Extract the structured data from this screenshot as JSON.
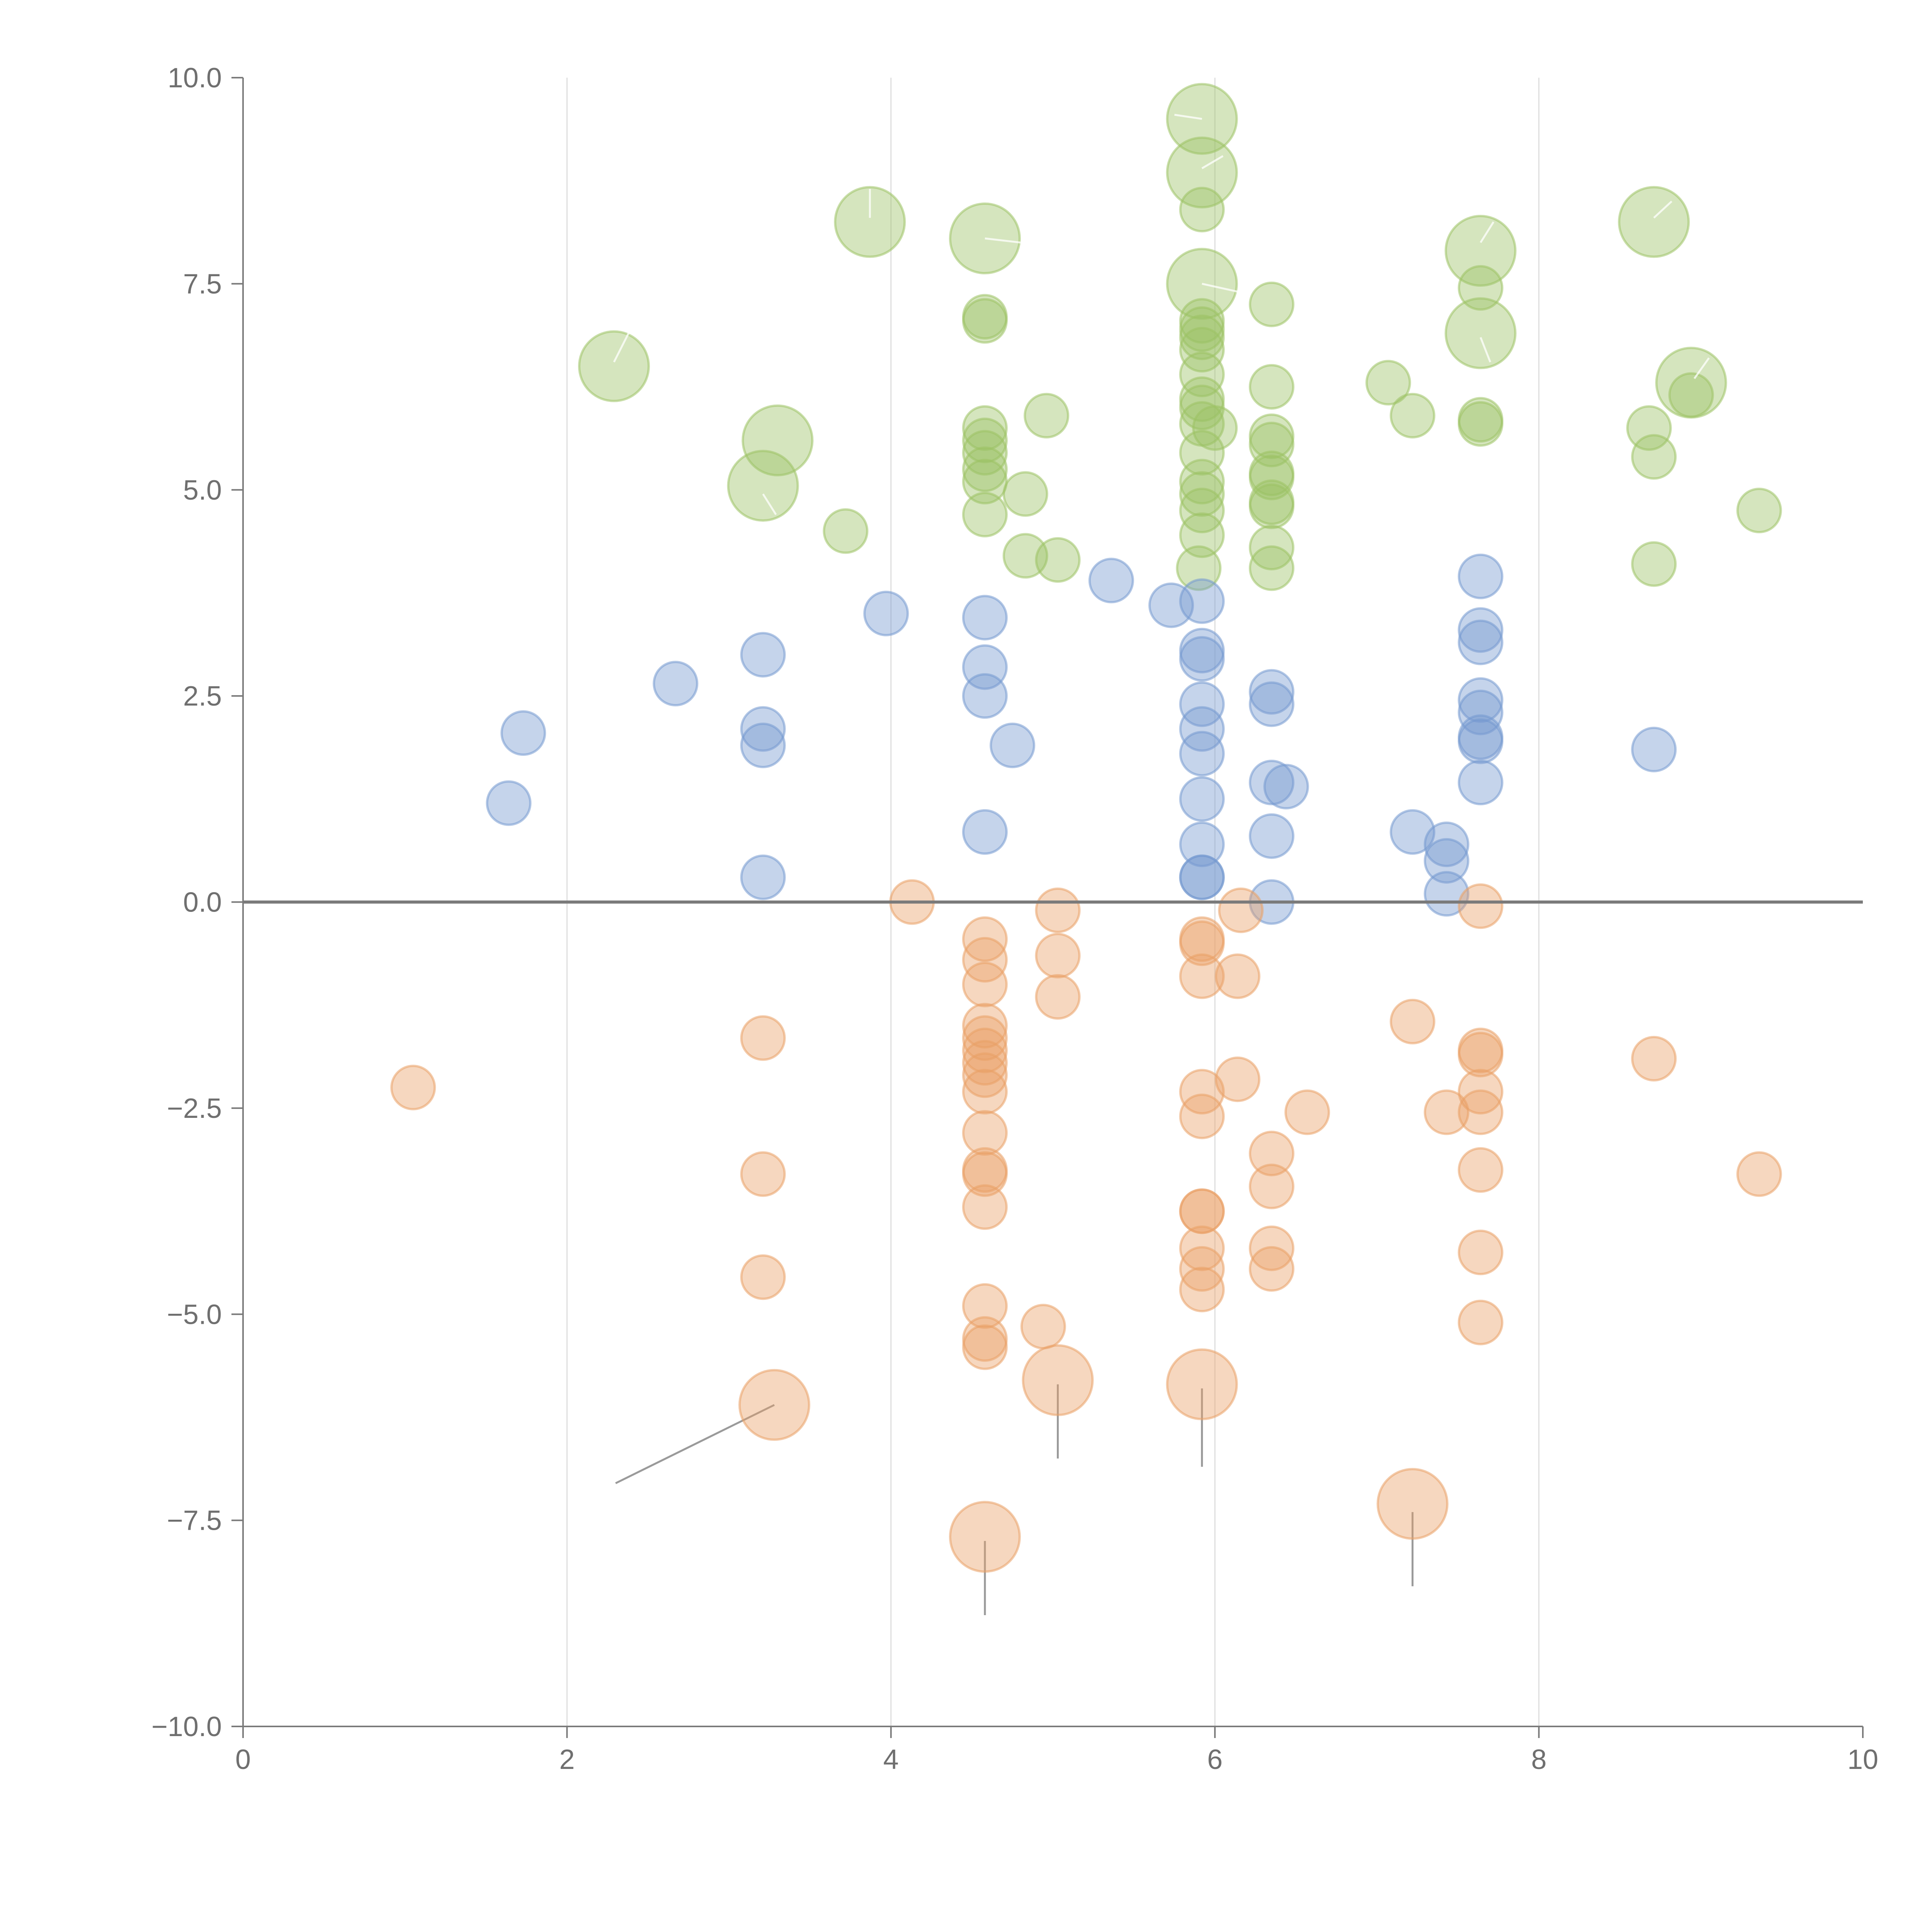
{
  "chart_data": {
    "type": "scatter",
    "title": "",
    "xlabel": "",
    "ylabel": "",
    "xlim": [
      0,
      10
    ],
    "ylim": [
      -10,
      10
    ],
    "grid": "vertical",
    "zero_line": true,
    "x_ticks": [
      "0",
      "2",
      "4",
      "6",
      "8",
      "10"
    ],
    "x_tick_values": [
      0,
      2,
      4,
      6,
      8,
      10
    ],
    "y_ticks": [
      "10.0",
      "7.5",
      "5.0",
      "2.5",
      "0.0",
      "−2.5",
      "−5.0",
      "−7.5",
      "−10.0"
    ],
    "y_tick_values": [
      10,
      7.5,
      5,
      2.5,
      0,
      -2.5,
      -5,
      -7.5,
      -10
    ],
    "series": [
      {
        "name": "green",
        "color": "#9cc264",
        "points": [
          [
            5.92,
            9.5,
            3
          ],
          [
            5.92,
            8.85,
            3
          ],
          [
            3.87,
            8.25,
            3
          ],
          [
            4.58,
            8.05,
            3
          ],
          [
            8.71,
            8.25,
            3
          ],
          [
            7.64,
            7.9,
            3
          ],
          [
            5.92,
            7.5,
            3
          ],
          [
            7.64,
            6.9,
            3
          ],
          [
            2.29,
            6.5,
            3
          ],
          [
            8.94,
            6.3,
            3
          ],
          [
            3.3,
            5.6,
            3
          ],
          [
            3.21,
            5.05,
            3
          ],
          [
            5.92,
            8.4,
            1
          ],
          [
            4.58,
            7.1,
            1
          ],
          [
            4.58,
            7.05,
            1
          ],
          [
            5.92,
            7.05,
            1
          ],
          [
            5.92,
            6.95,
            1
          ],
          [
            6.35,
            7.25,
            1
          ],
          [
            7.64,
            7.45,
            1
          ],
          [
            5.92,
            6.85,
            1
          ],
          [
            5.92,
            6.7,
            1
          ],
          [
            5.92,
            6.4,
            1
          ],
          [
            6.35,
            6.25,
            1
          ],
          [
            7.07,
            6.3,
            1
          ],
          [
            5.92,
            6.1,
            1
          ],
          [
            5.92,
            6.0,
            1
          ],
          [
            8.94,
            6.15,
            1
          ],
          [
            4.96,
            5.9,
            1
          ],
          [
            7.22,
            5.9,
            1
          ],
          [
            7.64,
            5.85,
            1
          ],
          [
            7.64,
            5.8,
            1
          ],
          [
            5.92,
            5.8,
            1
          ],
          [
            6.0,
            5.75,
            1
          ],
          [
            4.58,
            5.75,
            1
          ],
          [
            8.68,
            5.75,
            1
          ],
          [
            4.58,
            5.6,
            1
          ],
          [
            6.35,
            5.65,
            1
          ],
          [
            6.35,
            5.55,
            1
          ],
          [
            5.92,
            5.45,
            1
          ],
          [
            4.58,
            5.45,
            1
          ],
          [
            8.71,
            5.4,
            1
          ],
          [
            4.58,
            5.25,
            1
          ],
          [
            6.35,
            5.2,
            1
          ],
          [
            6.35,
            5.15,
            1
          ],
          [
            4.58,
            5.1,
            1
          ],
          [
            5.92,
            5.1,
            1
          ],
          [
            4.83,
            4.95,
            1
          ],
          [
            5.92,
            4.95,
            1
          ],
          [
            6.35,
            4.85,
            1
          ],
          [
            6.35,
            4.8,
            1
          ],
          [
            5.92,
            4.75,
            1
          ],
          [
            4.58,
            4.7,
            1
          ],
          [
            9.36,
            4.75,
            1
          ],
          [
            3.72,
            4.5,
            1
          ],
          [
            5.92,
            4.45,
            1
          ],
          [
            6.35,
            4.3,
            1
          ],
          [
            4.83,
            4.2,
            1
          ],
          [
            5.03,
            4.15,
            1
          ],
          [
            8.71,
            4.1,
            1
          ],
          [
            6.35,
            4.05,
            1
          ],
          [
            5.9,
            4.05,
            1
          ]
        ]
      },
      {
        "name": "blue",
        "color": "#7499d0",
        "points": [
          [
            7.64,
            3.95,
            1
          ],
          [
            5.36,
            3.9,
            1
          ],
          [
            5.73,
            3.6,
            1
          ],
          [
            5.92,
            3.65,
            1
          ],
          [
            3.97,
            3.5,
            1
          ],
          [
            4.58,
            3.45,
            1
          ],
          [
            7.64,
            3.3,
            1
          ],
          [
            7.64,
            3.15,
            1
          ],
          [
            5.92,
            3.05,
            1
          ],
          [
            3.21,
            3.0,
            1
          ],
          [
            5.92,
            2.95,
            1
          ],
          [
            4.58,
            2.85,
            1
          ],
          [
            2.67,
            2.65,
            1
          ],
          [
            6.35,
            2.55,
            1
          ],
          [
            4.58,
            2.5,
            1
          ],
          [
            6.35,
            2.4,
            1
          ],
          [
            5.92,
            2.4,
            1
          ],
          [
            7.64,
            2.45,
            1
          ],
          [
            7.64,
            2.3,
            1
          ],
          [
            3.21,
            2.1,
            1
          ],
          [
            5.92,
            2.1,
            1
          ],
          [
            1.73,
            2.05,
            1
          ],
          [
            7.64,
            2.0,
            1
          ],
          [
            7.64,
            1.95,
            1
          ],
          [
            3.21,
            1.9,
            1
          ],
          [
            4.75,
            1.9,
            1
          ],
          [
            5.92,
            1.8,
            1
          ],
          [
            8.71,
            1.85,
            1
          ],
          [
            7.64,
            1.45,
            1
          ],
          [
            6.35,
            1.45,
            1
          ],
          [
            6.44,
            1.4,
            1
          ],
          [
            5.92,
            1.25,
            1
          ],
          [
            1.64,
            1.2,
            1
          ],
          [
            4.58,
            0.85,
            1
          ],
          [
            6.35,
            0.8,
            1
          ],
          [
            7.22,
            0.85,
            1
          ],
          [
            7.43,
            0.7,
            1
          ],
          [
            5.92,
            0.7,
            1
          ],
          [
            7.43,
            0.5,
            1
          ],
          [
            3.21,
            0.3,
            1
          ],
          [
            5.92,
            0.3,
            1
          ],
          [
            5.92,
            0.3,
            1
          ],
          [
            7.43,
            0.1,
            1
          ],
          [
            6.35,
            0.0,
            1
          ]
        ]
      },
      {
        "name": "orange",
        "color": "#eaa066",
        "points": [
          [
            4.13,
            0.0,
            1
          ],
          [
            7.64,
            -0.05,
            1
          ],
          [
            5.03,
            -0.1,
            1
          ],
          [
            6.16,
            -0.1,
            1
          ],
          [
            4.58,
            -0.45,
            1
          ],
          [
            5.92,
            -0.45,
            1
          ],
          [
            5.92,
            -0.5,
            1
          ],
          [
            5.03,
            -0.65,
            1
          ],
          [
            4.58,
            -0.7,
            1
          ],
          [
            5.92,
            -0.9,
            1
          ],
          [
            6.14,
            -0.9,
            1
          ],
          [
            4.58,
            -1.0,
            1
          ],
          [
            5.03,
            -1.15,
            1
          ],
          [
            7.22,
            -1.45,
            1
          ],
          [
            4.58,
            -1.5,
            1
          ],
          [
            3.21,
            -1.65,
            1
          ],
          [
            4.58,
            -1.65,
            1
          ],
          [
            7.64,
            -1.8,
            1
          ],
          [
            7.64,
            -1.85,
            1
          ],
          [
            4.58,
            -1.8,
            1
          ],
          [
            4.58,
            -1.95,
            1
          ],
          [
            8.71,
            -1.9,
            1
          ],
          [
            4.58,
            -2.1,
            1
          ],
          [
            6.14,
            -2.15,
            1
          ],
          [
            1.05,
            -2.25,
            1
          ],
          [
            5.92,
            -2.3,
            1
          ],
          [
            7.64,
            -2.3,
            1
          ],
          [
            4.58,
            -2.3,
            1
          ],
          [
            7.43,
            -2.55,
            1
          ],
          [
            6.57,
            -2.55,
            1
          ],
          [
            7.64,
            -2.55,
            1
          ],
          [
            5.92,
            -2.6,
            1
          ],
          [
            4.58,
            -2.8,
            1
          ],
          [
            6.35,
            -3.05,
            1
          ],
          [
            4.58,
            -3.25,
            1
          ],
          [
            4.58,
            -3.3,
            1
          ],
          [
            7.64,
            -3.25,
            1
          ],
          [
            3.21,
            -3.3,
            1
          ],
          [
            9.36,
            -3.3,
            1
          ],
          [
            6.35,
            -3.45,
            1
          ],
          [
            4.58,
            -3.7,
            1
          ],
          [
            5.92,
            -3.75,
            1
          ],
          [
            5.92,
            -3.75,
            1
          ],
          [
            5.92,
            -4.2,
            1
          ],
          [
            6.35,
            -4.2,
            1
          ],
          [
            7.64,
            -4.25,
            1
          ],
          [
            5.92,
            -4.45,
            1
          ],
          [
            6.35,
            -4.45,
            1
          ],
          [
            3.21,
            -4.55,
            1
          ],
          [
            5.92,
            -4.7,
            1
          ],
          [
            4.58,
            -4.9,
            1
          ],
          [
            7.64,
            -5.1,
            1
          ],
          [
            4.94,
            -5.15,
            1
          ],
          [
            4.58,
            -5.3,
            1
          ],
          [
            4.58,
            -5.4,
            1
          ],
          [
            3.28,
            -6.1,
            3
          ],
          [
            5.03,
            -5.8,
            3
          ],
          [
            5.92,
            -5.85,
            3
          ],
          [
            4.58,
            -7.7,
            3
          ],
          [
            7.22,
            -7.3,
            3
          ]
        ]
      }
    ]
  }
}
